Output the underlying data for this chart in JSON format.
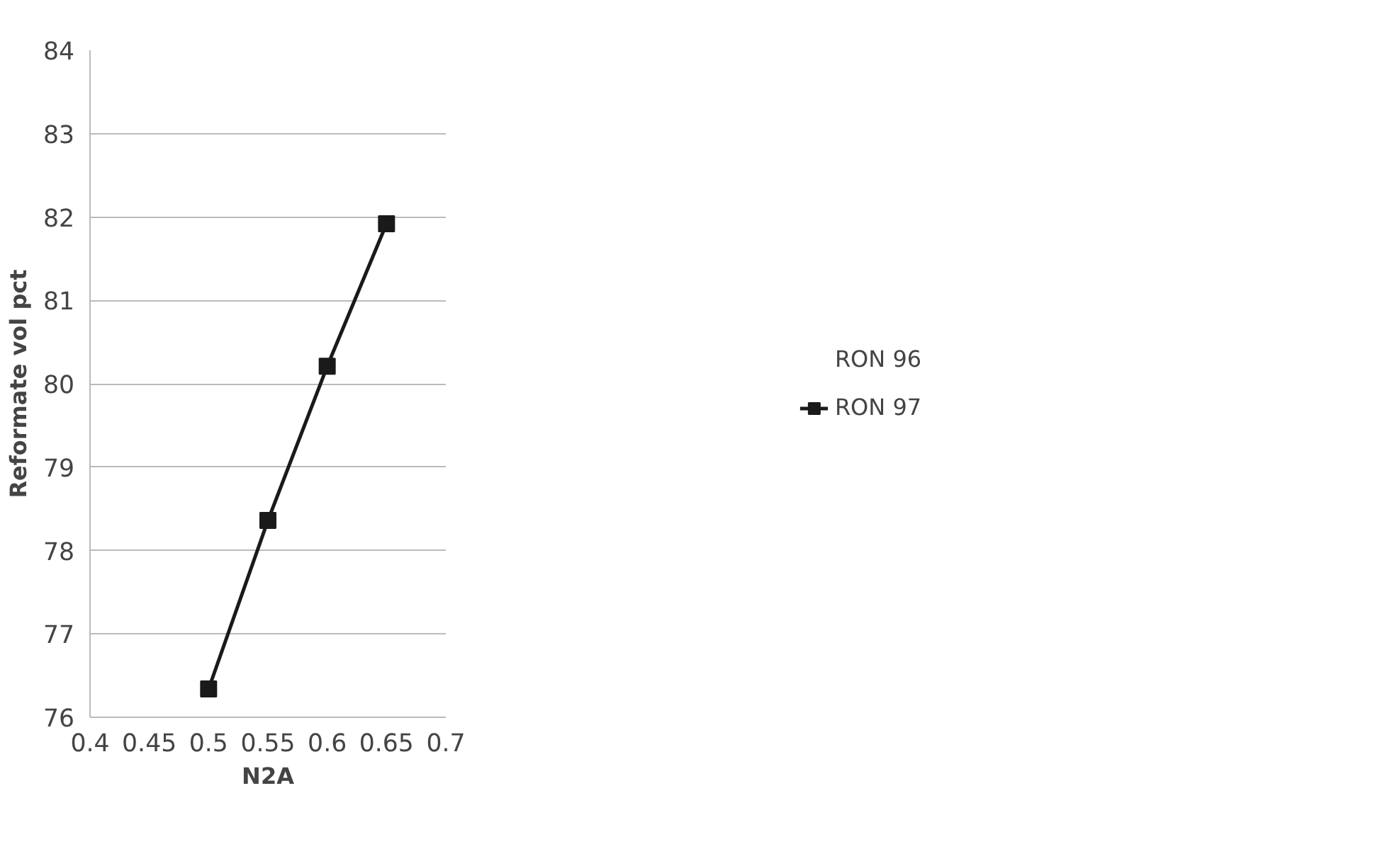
{
  "chart_data": {
    "type": "line",
    "xlabel": "N2A",
    "ylabel": "Reformate vol pct",
    "x": [
      0.5,
      0.55,
      0.6,
      0.65
    ],
    "series": [
      {
        "name": "RON 96",
        "values": [
          null,
          null,
          null,
          null
        ]
      },
      {
        "name": "RON 97",
        "color": "#1a1a1a",
        "values": [
          76.34,
          78.36,
          80.21,
          81.92
        ]
      }
    ],
    "xlim": [
      0.4,
      0.7
    ],
    "xticks": [
      0.4,
      0.45,
      0.5,
      0.55,
      0.6,
      0.65,
      0.7
    ],
    "ylim": [
      76,
      84
    ],
    "yticks": [
      76,
      77,
      78,
      79,
      80,
      81,
      82,
      83,
      84
    ],
    "grid": "y",
    "legend": "right",
    "marker": "square",
    "line_style": "solid"
  }
}
